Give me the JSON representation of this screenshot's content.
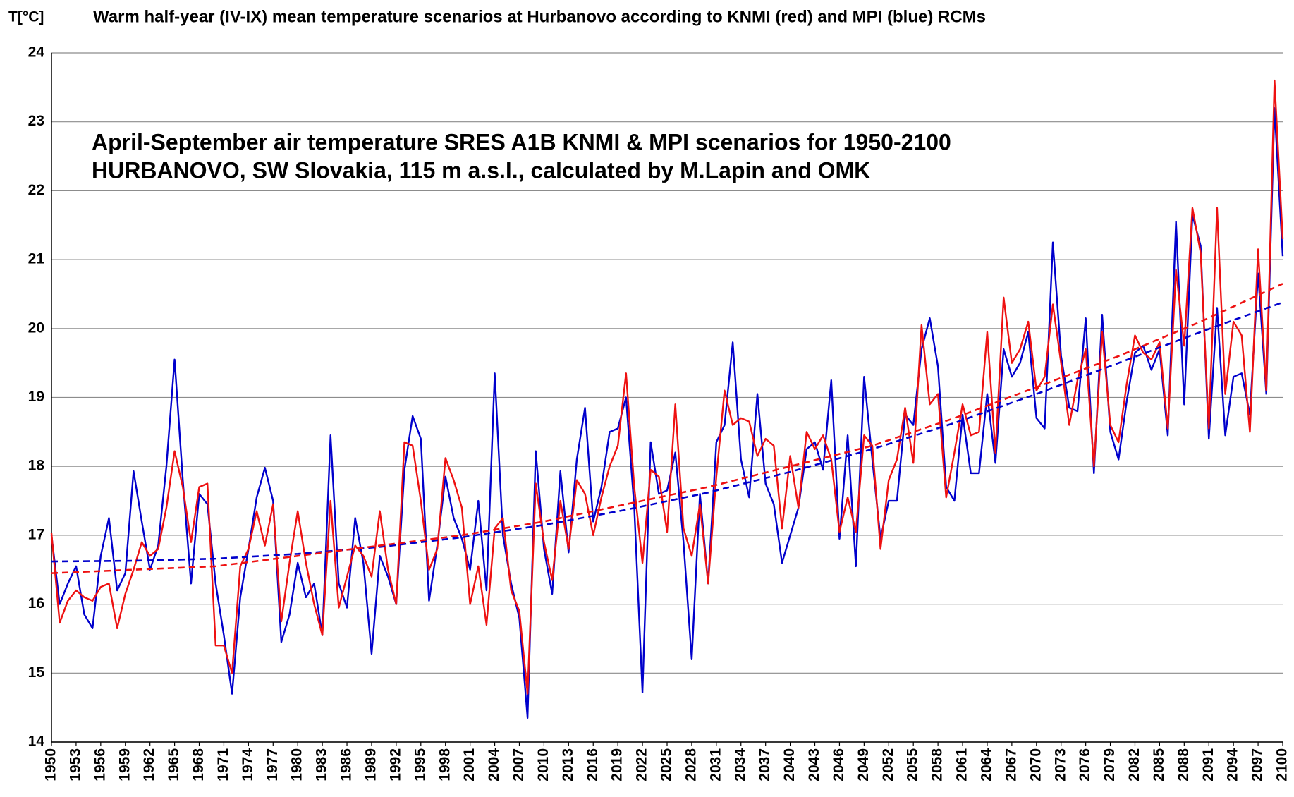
{
  "chart_data": {
    "type": "line",
    "title": "Warm half-year (IV-IX) mean temperature scenarios at Hurbanovo according to KNMI (red) and MPI (blue) RCMs",
    "ylabel": "T[°C]",
    "annotation": [
      "April-September air temperature SRES A1B KNMI & MPI scenarios for 1950-2100",
      "HURBANOVO, SW Slovakia, 115 m a.s.l., calculated by M.Lapin and OMK"
    ],
    "x": [
      1950,
      1951,
      1952,
      1953,
      1954,
      1955,
      1956,
      1957,
      1958,
      1959,
      1960,
      1961,
      1962,
      1963,
      1964,
      1965,
      1966,
      1967,
      1968,
      1969,
      1970,
      1971,
      1972,
      1973,
      1974,
      1975,
      1976,
      1977,
      1978,
      1979,
      1980,
      1981,
      1982,
      1983,
      1984,
      1985,
      1986,
      1987,
      1988,
      1989,
      1990,
      1991,
      1992,
      1993,
      1994,
      1995,
      1996,
      1997,
      1998,
      1999,
      2000,
      2001,
      2002,
      2003,
      2004,
      2005,
      2006,
      2007,
      2008,
      2009,
      2010,
      2011,
      2012,
      2013,
      2014,
      2015,
      2016,
      2017,
      2018,
      2019,
      2020,
      2021,
      2022,
      2023,
      2024,
      2025,
      2026,
      2027,
      2028,
      2029,
      2030,
      2031,
      2032,
      2033,
      2034,
      2035,
      2036,
      2037,
      2038,
      2039,
      2040,
      2041,
      2042,
      2043,
      2044,
      2045,
      2046,
      2047,
      2048,
      2049,
      2050,
      2051,
      2052,
      2053,
      2054,
      2055,
      2056,
      2057,
      2058,
      2059,
      2060,
      2061,
      2062,
      2063,
      2064,
      2065,
      2066,
      2067,
      2068,
      2069,
      2070,
      2071,
      2072,
      2073,
      2074,
      2075,
      2076,
      2077,
      2078,
      2079,
      2080,
      2081,
      2082,
      2083,
      2084,
      2085,
      2086,
      2087,
      2088,
      2089,
      2090,
      2091,
      2092,
      2093,
      2094,
      2095,
      2096,
      2097,
      2098,
      2099,
      2100
    ],
    "series": [
      {
        "color": "#0000cc",
        "values": [
          17.0,
          16.0,
          16.3,
          16.55,
          15.85,
          15.65,
          16.7,
          17.25,
          16.2,
          16.45,
          17.93,
          17.2,
          16.5,
          16.85,
          18.0,
          19.55,
          17.8,
          16.3,
          17.6,
          17.45,
          16.3,
          15.55,
          14.7,
          16.1,
          16.8,
          17.55,
          17.98,
          17.5,
          15.45,
          15.85,
          16.6,
          16.1,
          16.3,
          15.55,
          18.45,
          16.3,
          15.95,
          17.25,
          16.6,
          15.28,
          16.7,
          16.4,
          16.0,
          17.95,
          18.73,
          18.4,
          16.05,
          16.85,
          17.85,
          17.25,
          16.95,
          16.5,
          17.5,
          16.2,
          19.35,
          17.0,
          16.3,
          15.8,
          14.35,
          18.22,
          16.8,
          16.15,
          17.93,
          16.75,
          18.1,
          18.85,
          17.2,
          17.7,
          18.5,
          18.55,
          19.0,
          17.4,
          14.72,
          18.35,
          17.6,
          17.65,
          18.2,
          16.9,
          15.2,
          17.6,
          16.3,
          18.35,
          18.6,
          19.8,
          18.1,
          17.55,
          19.05,
          17.75,
          17.45,
          16.6,
          17.0,
          17.4,
          18.25,
          18.35,
          17.95,
          19.25,
          16.95,
          18.45,
          16.55,
          19.3,
          18.1,
          16.95,
          17.5,
          17.5,
          18.75,
          18.6,
          19.7,
          20.15,
          19.45,
          17.7,
          17.5,
          18.75,
          17.9,
          17.9,
          19.05,
          18.05,
          19.7,
          19.3,
          19.5,
          19.95,
          18.7,
          18.55,
          21.25,
          19.6,
          18.85,
          18.8,
          20.15,
          17.9,
          20.2,
          18.5,
          18.1,
          18.95,
          19.65,
          19.75,
          19.4,
          19.7,
          18.45,
          21.55,
          18.9,
          21.65,
          21.2,
          18.4,
          20.3,
          18.45,
          19.3,
          19.35,
          18.75,
          20.8,
          19.05,
          23.2,
          21.05
        ]
      },
      {
        "color": "#ee1111",
        "values": [
          17.03,
          15.73,
          16.05,
          16.2,
          16.1,
          16.05,
          16.25,
          16.3,
          15.65,
          16.15,
          16.5,
          16.9,
          16.7,
          16.8,
          17.4,
          18.22,
          17.7,
          16.9,
          17.7,
          17.75,
          15.4,
          15.4,
          15.0,
          16.55,
          16.8,
          17.35,
          16.85,
          17.45,
          15.75,
          16.6,
          17.35,
          16.6,
          16.0,
          15.55,
          17.5,
          15.95,
          16.4,
          16.85,
          16.7,
          16.4,
          17.35,
          16.5,
          16.0,
          18.35,
          18.3,
          17.5,
          16.5,
          16.8,
          18.12,
          17.8,
          17.4,
          16.0,
          16.55,
          15.7,
          17.1,
          17.25,
          16.2,
          15.9,
          14.7,
          17.75,
          16.9,
          16.35,
          17.5,
          16.8,
          17.8,
          17.6,
          17.0,
          17.55,
          18.0,
          18.3,
          19.35,
          17.7,
          16.6,
          17.95,
          17.85,
          17.05,
          18.9,
          17.1,
          16.7,
          17.45,
          16.3,
          17.85,
          19.1,
          18.6,
          18.7,
          18.65,
          18.15,
          18.4,
          18.3,
          17.1,
          18.15,
          17.4,
          18.5,
          18.25,
          18.45,
          18.1,
          17.05,
          17.55,
          17.05,
          18.45,
          18.3,
          16.8,
          17.8,
          18.1,
          18.85,
          18.05,
          20.05,
          18.9,
          19.05,
          17.55,
          18.2,
          18.9,
          18.45,
          18.5,
          19.95,
          18.2,
          20.45,
          19.5,
          19.7,
          20.1,
          19.1,
          19.3,
          20.35,
          19.5,
          18.6,
          19.25,
          19.7,
          18.0,
          19.95,
          18.6,
          18.35,
          19.2,
          19.9,
          19.65,
          19.55,
          19.8,
          18.55,
          20.85,
          19.75,
          21.75,
          21.1,
          18.55,
          21.75,
          19.05,
          20.1,
          19.9,
          18.5,
          21.15,
          19.1,
          23.6,
          21.3
        ]
      }
    ],
    "trends": [
      {
        "color": "#0000cc",
        "style": "dashed",
        "x": [
          1950,
          1960,
          1970,
          1980,
          1990,
          2000,
          2010,
          2020,
          2030,
          2040,
          2050,
          2060,
          2070,
          2080,
          2090,
          2100
        ],
        "values": [
          16.62,
          16.63,
          16.66,
          16.73,
          16.83,
          16.97,
          17.15,
          17.37,
          17.62,
          17.92,
          18.25,
          18.63,
          19.05,
          19.5,
          19.95,
          20.38
        ]
      },
      {
        "color": "#ee1111",
        "style": "dashed",
        "x": [
          1950,
          1960,
          1970,
          1980,
          1990,
          2000,
          2010,
          2020,
          2030,
          2040,
          2050,
          2060,
          2070,
          2080,
          2090,
          2100
        ],
        "values": [
          16.45,
          16.5,
          16.55,
          16.7,
          16.85,
          17.0,
          17.2,
          17.45,
          17.7,
          18.0,
          18.3,
          18.7,
          19.15,
          19.6,
          20.1,
          20.65
        ]
      }
    ],
    "xlim": [
      1950,
      2100
    ],
    "xticks": [
      1950,
      1953,
      1956,
      1959,
      1962,
      1965,
      1968,
      1971,
      1974,
      1977,
      1980,
      1983,
      1986,
      1989,
      1992,
      1995,
      1998,
      2001,
      2004,
      2007,
      2010,
      2013,
      2016,
      2019,
      2022,
      2025,
      2028,
      2031,
      2034,
      2037,
      2040,
      2043,
      2046,
      2049,
      2052,
      2055,
      2058,
      2061,
      2064,
      2067,
      2070,
      2073,
      2076,
      2079,
      2082,
      2085,
      2088,
      2091,
      2094,
      2097,
      2100
    ],
    "ylim": [
      14,
      24
    ],
    "yticks": [
      14,
      15,
      16,
      17,
      18,
      19,
      20,
      21,
      22,
      23,
      24
    ],
    "grid": true
  }
}
